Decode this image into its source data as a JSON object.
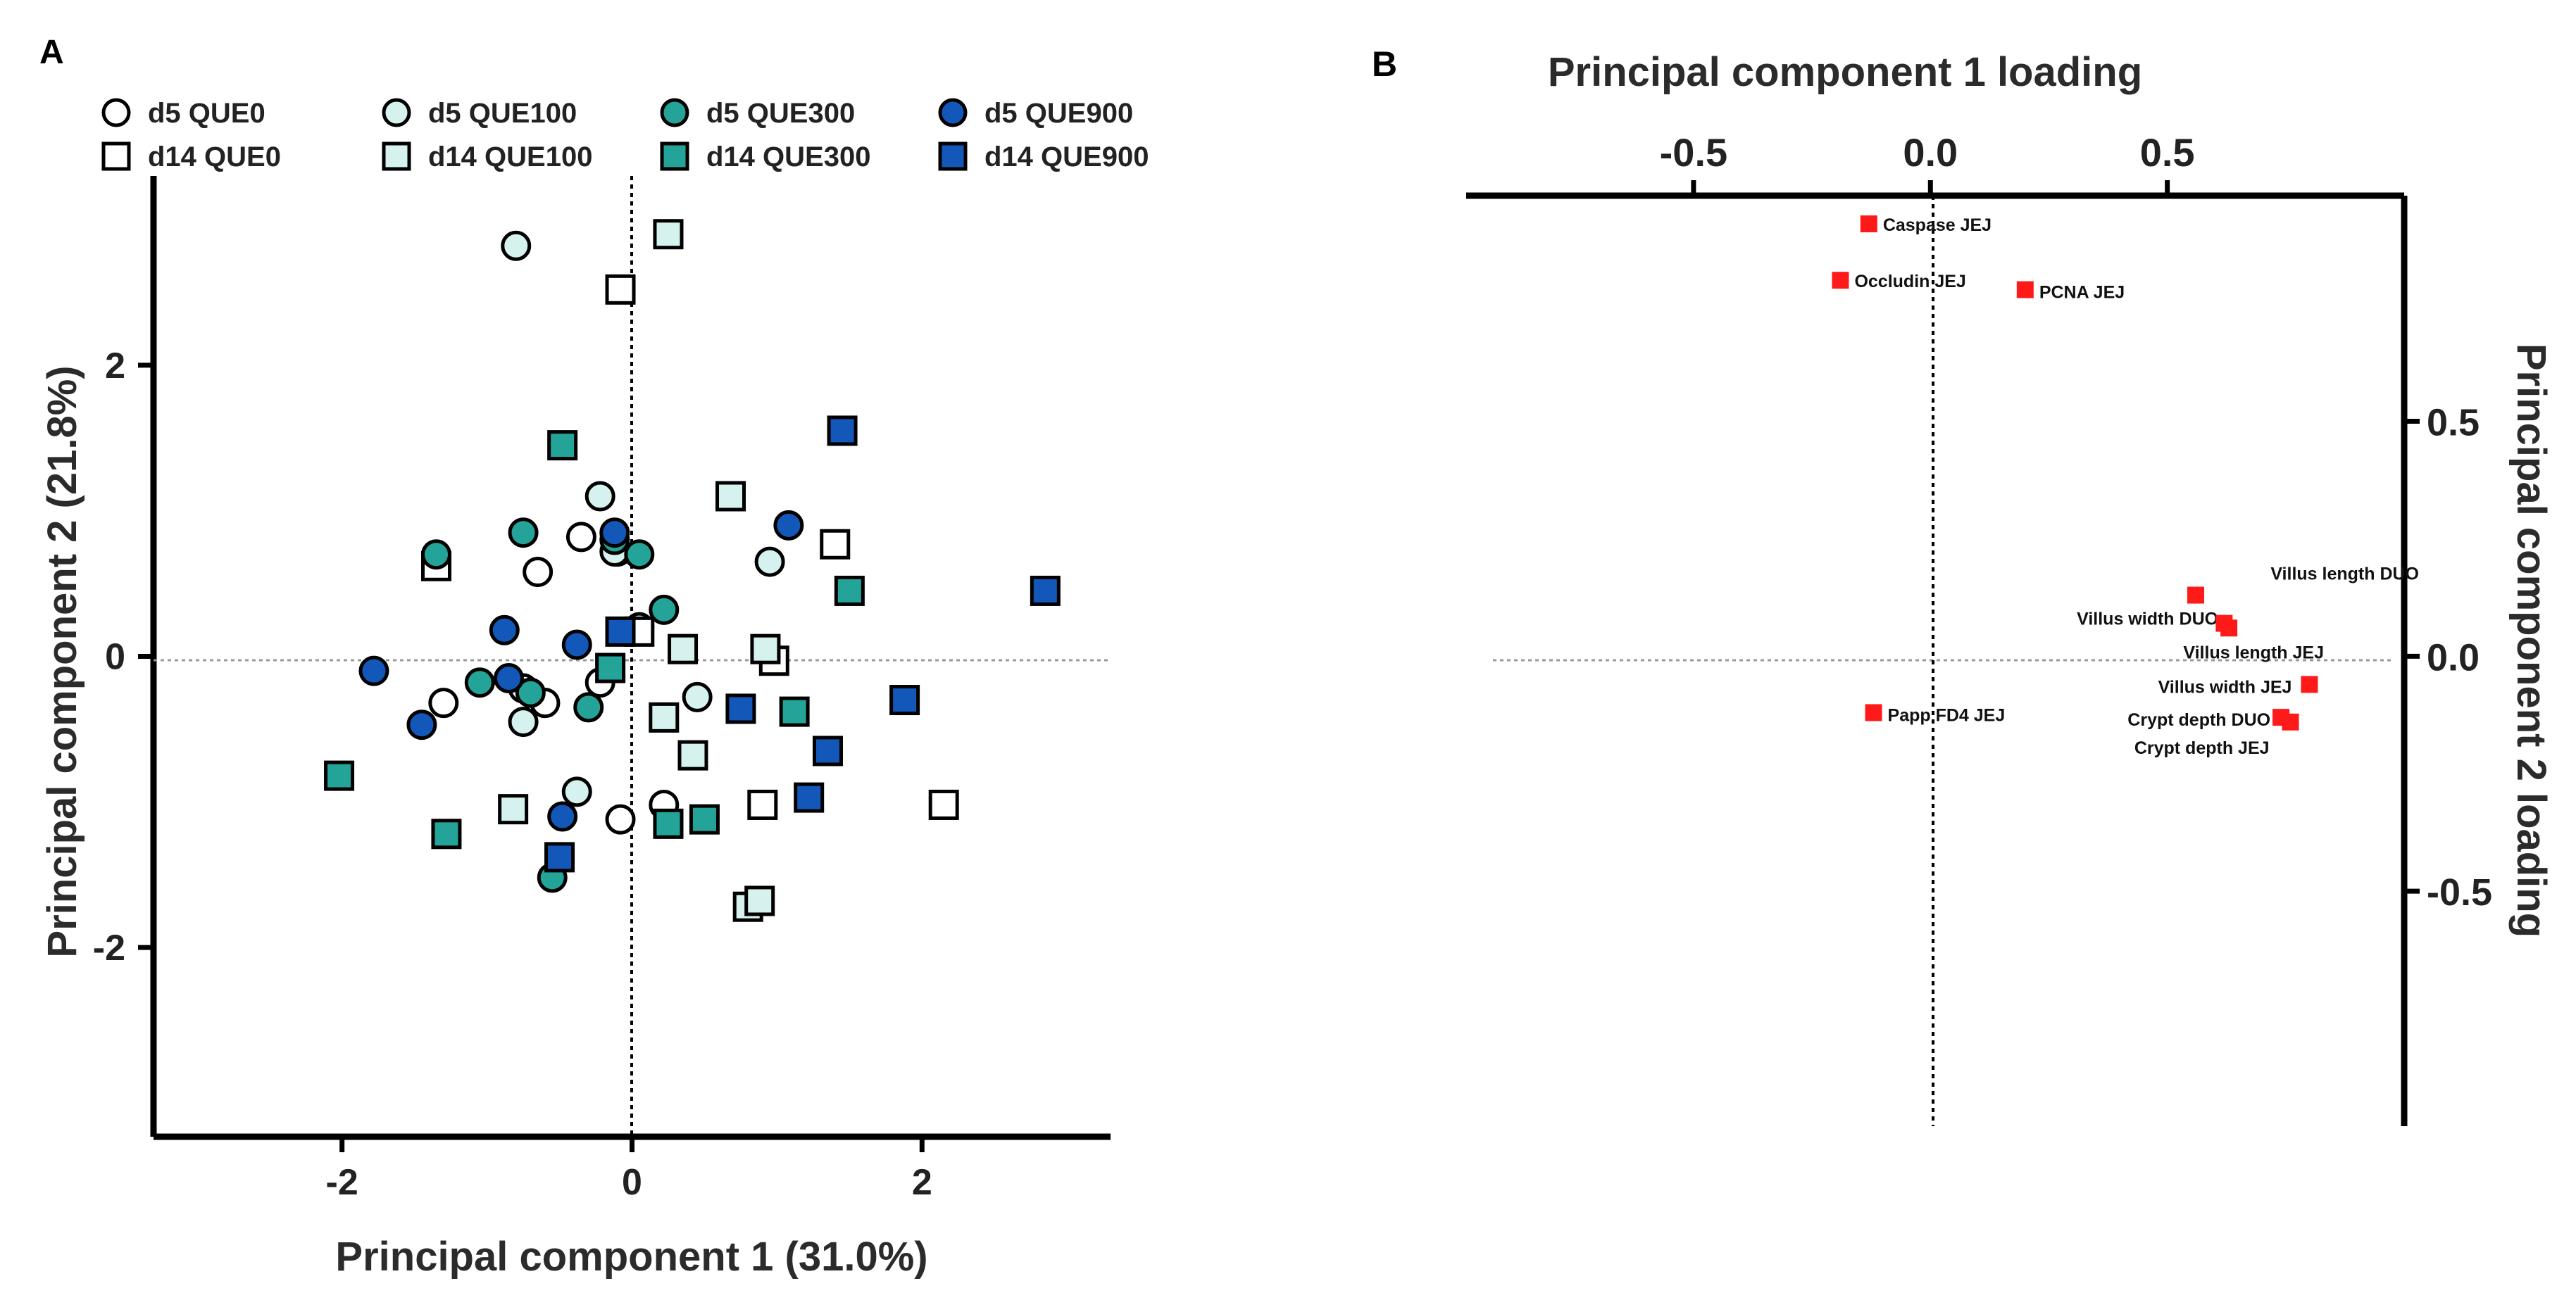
{
  "colors": {
    "QUE0": "#ffffff",
    "QUE100": "#d6f2ef",
    "QUE300": "#24a398",
    "QUE900": "#1358b8",
    "loading": "#ff1a1a",
    "stroke": "#000000"
  },
  "chart_data": [
    {
      "panel": "A",
      "type": "scatter",
      "xlabel": "Principal component 1 (31.0%)",
      "ylabel": "Principal component 2 (21.8%)",
      "xlim": [
        -3.3,
        3.3
      ],
      "ylim": [
        -3.3,
        3.3
      ],
      "xticks": [
        -2,
        0,
        2
      ],
      "yticks": [
        -2,
        0,
        2
      ],
      "xtick_labels": [
        "-2",
        "0",
        "2"
      ],
      "ytick_labels": [
        "-2",
        "0",
        "2"
      ],
      "legend_position": "top",
      "series": [
        {
          "name": "d5 QUE0",
          "marker": "circle",
          "color_key": "QUE0",
          "points": [
            [
              -0.35,
              0.82
            ],
            [
              -0.65,
              0.58
            ],
            [
              -0.1,
              0.72
            ],
            [
              0.05,
              0.2
            ],
            [
              -1.3,
              -0.32
            ],
            [
              -0.6,
              -0.32
            ],
            [
              -0.22,
              -0.18
            ],
            [
              0.22,
              -1.02
            ],
            [
              -0.08,
              -1.12
            ],
            [
              -0.75,
              -0.22
            ]
          ]
        },
        {
          "name": "d14 QUE0",
          "marker": "square",
          "color_key": "QUE0",
          "points": [
            [
              -0.08,
              2.52
            ],
            [
              -1.35,
              0.62
            ],
            [
              1.4,
              0.77
            ],
            [
              0.05,
              0.17
            ],
            [
              0.98,
              -0.03
            ],
            [
              0.9,
              -1.02
            ],
            [
              2.15,
              -1.02
            ]
          ]
        },
        {
          "name": "d5 QUE100",
          "marker": "circle",
          "color_key": "QUE100",
          "points": [
            [
              -0.8,
              2.82
            ],
            [
              -0.22,
              1.1
            ],
            [
              -0.12,
              0.72
            ],
            [
              0.95,
              0.65
            ],
            [
              -0.75,
              -0.45
            ],
            [
              -0.38,
              -0.93
            ],
            [
              0.45,
              -0.28
            ]
          ]
        },
        {
          "name": "d14 QUE100",
          "marker": "square",
          "color_key": "QUE100",
          "points": [
            [
              0.25,
              2.9
            ],
            [
              0.68,
              1.1
            ],
            [
              0.35,
              0.05
            ],
            [
              0.92,
              0.05
            ],
            [
              0.22,
              -0.42
            ],
            [
              0.42,
              -0.68
            ],
            [
              -0.82,
              -1.05
            ],
            [
              0.8,
              -1.72
            ],
            [
              0.88,
              -1.68
            ]
          ]
        },
        {
          "name": "d5 QUE300",
          "marker": "circle",
          "color_key": "QUE300",
          "points": [
            [
              -1.35,
              0.7
            ],
            [
              -0.75,
              0.85
            ],
            [
              -0.12,
              0.8
            ],
            [
              0.05,
              0.7
            ],
            [
              0.22,
              0.32
            ],
            [
              -1.05,
              -0.18
            ],
            [
              -0.7,
              -0.25
            ],
            [
              -0.3,
              -0.35
            ],
            [
              -0.55,
              -1.52
            ]
          ]
        },
        {
          "name": "d14 QUE300",
          "marker": "square",
          "color_key": "QUE300",
          "points": [
            [
              -0.48,
              1.45
            ],
            [
              1.5,
              0.45
            ],
            [
              -0.15,
              -0.08
            ],
            [
              1.12,
              -0.38
            ],
            [
              -2.02,
              -0.82
            ],
            [
              -1.28,
              -1.22
            ],
            [
              0.25,
              -1.15
            ],
            [
              0.5,
              -1.12
            ]
          ]
        },
        {
          "name": "d5 QUE900",
          "marker": "circle",
          "color_key": "QUE900",
          "points": [
            [
              1.08,
              0.9
            ],
            [
              -0.12,
              0.85
            ],
            [
              -0.88,
              0.18
            ],
            [
              -0.38,
              0.08
            ],
            [
              -1.78,
              -0.1
            ],
            [
              -0.85,
              -0.15
            ],
            [
              -1.45,
              -0.47
            ],
            [
              -0.48,
              -1.1
            ]
          ]
        },
        {
          "name": "d14 QUE900",
          "marker": "square",
          "color_key": "QUE900",
          "points": [
            [
              1.45,
              1.55
            ],
            [
              2.85,
              0.45
            ],
            [
              -0.08,
              0.17
            ],
            [
              0.75,
              -0.36
            ],
            [
              1.88,
              -0.3
            ],
            [
              1.35,
              -0.65
            ],
            [
              1.22,
              -0.97
            ],
            [
              -0.5,
              -1.38
            ]
          ]
        }
      ]
    },
    {
      "panel": "B",
      "type": "scatter",
      "xlabel": "Principal component 1 loading",
      "ylabel": "Principal component 2 loading",
      "xaxis_position": "top",
      "yaxis_position": "right",
      "xlim": [
        -0.98,
        1.0
      ],
      "ylim": [
        -1.0,
        0.98
      ],
      "xticks": [
        -0.5,
        0.0,
        0.5
      ],
      "yticks": [
        0.5,
        0.0,
        -0.5
      ],
      "xtick_labels": [
        "-0.5",
        "0.0",
        "0.5"
      ],
      "ytick_labels": [
        "0.5",
        "0.0",
        "-0.5"
      ],
      "points": [
        {
          "label": "Caspase JEJ",
          "x": -0.13,
          "y": 0.92
        },
        {
          "label": "Occludin JEJ",
          "x": -0.19,
          "y": 0.8
        },
        {
          "label": "PCNA JEJ",
          "x": 0.2,
          "y": 0.78
        },
        {
          "label": "Villus length DUO",
          "x": 0.56,
          "y": 0.13
        },
        {
          "label": "Villus width DUO",
          "x": 0.63,
          "y": 0.06
        },
        {
          "label": "Villus length JEJ",
          "x": 0.62,
          "y": 0.07
        },
        {
          "label": "Villus width JEJ",
          "x": 0.8,
          "y": -0.06
        },
        {
          "label": "Crypt depth DUO",
          "x": 0.74,
          "y": -0.13
        },
        {
          "label": "Crypt depth JEJ",
          "x": 0.76,
          "y": -0.14
        },
        {
          "label": "Papp FD4 JEJ",
          "x": -0.12,
          "y": -0.12
        }
      ]
    }
  ],
  "panel_labels": {
    "a": "A",
    "b": "B"
  }
}
